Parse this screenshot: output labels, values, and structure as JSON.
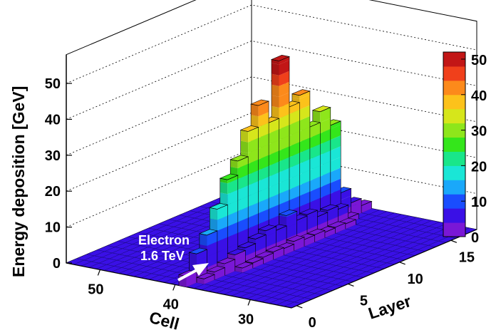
{
  "chart_data": {
    "type": "lego3d",
    "zlabel": "Energy deposition [GeV]",
    "xlabel": "Cell",
    "ylabel": "Layer",
    "zlim": [
      0,
      50
    ],
    "z_ticks": [
      0,
      10,
      20,
      30,
      40,
      50
    ],
    "cell_ticks": [
      30,
      40,
      50
    ],
    "layer_ticks": [
      0,
      5,
      10,
      15
    ],
    "colorbar_ticks": [
      0,
      10,
      20,
      30,
      40,
      50
    ],
    "colorbar_range": [
      0,
      52
    ],
    "annotation_line1": "Electron",
    "annotation_line2": "1.6 TeV",
    "grid": "dotted",
    "cells": [
      25,
      54
    ],
    "layers": [
      0,
      17
    ],
    "shower": {
      "center_cell": 39,
      "peak_energy_gev": 52,
      "peak_layer": 9,
      "layers_energy_gev": [
        3,
        8,
        12,
        18,
        25,
        29,
        36,
        42,
        36,
        52,
        38,
        40,
        30,
        33,
        28,
        8,
        4,
        2
      ]
    }
  },
  "colors": {
    "palette": [
      "#7a17d6",
      "#3a10e6",
      "#1a4dfe",
      "#1aa8fa",
      "#1ae6d6",
      "#19e68a",
      "#34e61b",
      "#8ee61b",
      "#d6e61b",
      "#fcc21b",
      "#fc8a1b",
      "#f0401b",
      "#c21616"
    ]
  }
}
